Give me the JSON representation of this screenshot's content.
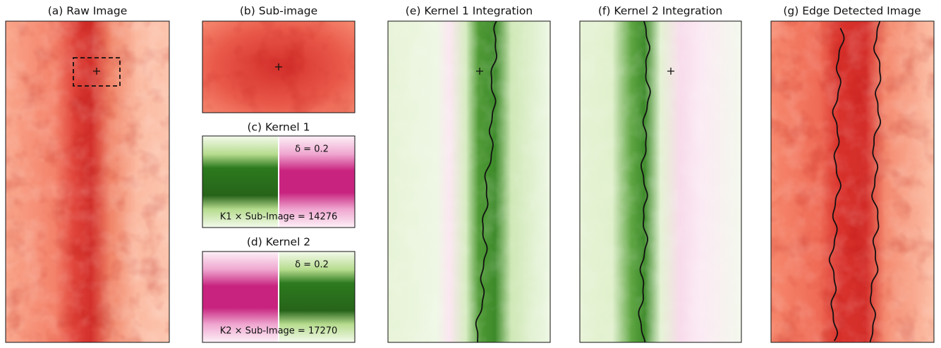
{
  "panels": [
    {
      "title": "(a) Raw Image"
    },
    {
      "title": "(b) Sub-image"
    },
    {
      "title": "(c) Kernel 1",
      "delta": "δ = 0.2",
      "product": "K1 × Sub-Image = 14276"
    },
    {
      "title": "(d) Kernel 2",
      "delta": "δ = 0.2",
      "product": "K2 × Sub-Image = 17270"
    },
    {
      "title": "(e) Kernel 1 Integration"
    },
    {
      "title": "(f) Kernel 2 Integration"
    },
    {
      "title": "(g) Edge Detected Image"
    }
  ]
}
